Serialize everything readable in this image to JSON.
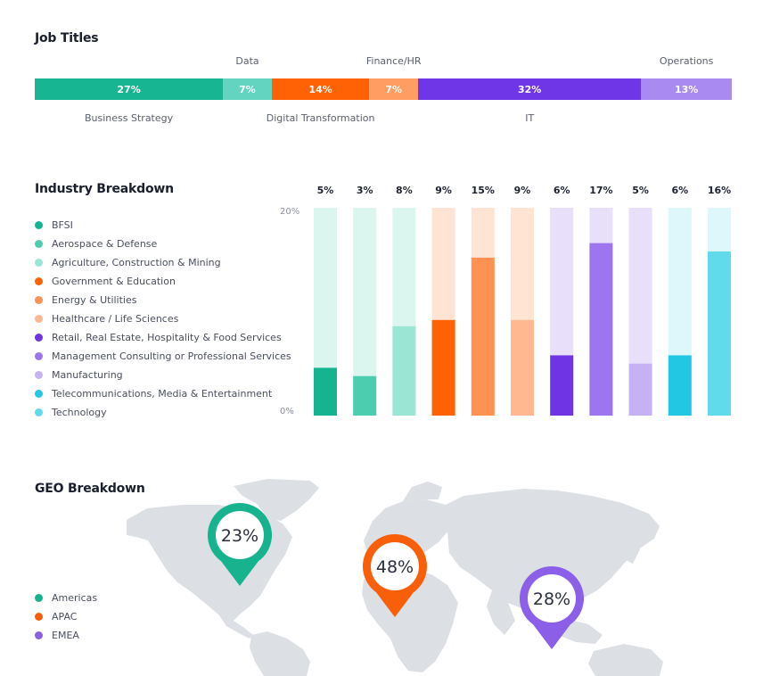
{
  "job_titles": {
    "title": "Job Titles"
  },
  "industry": {
    "title": "Industry Breakdown",
    "axis_top": "20%",
    "axis_bottom": "0%"
  },
  "geo": {
    "title": "GEO Breakdown"
  },
  "chart_data": [
    {
      "type": "bar",
      "title": "Job Titles",
      "stacked": true,
      "orientation": "horizontal",
      "categories": [
        "Business Strategy",
        "Data",
        "Digital Transformation",
        "Finance/HR",
        "IT",
        "Operations"
      ],
      "values": [
        27,
        7,
        14,
        7,
        32,
        13
      ],
      "value_labels": [
        "27%",
        "7%",
        "14%",
        "7%",
        "32%",
        "13%"
      ],
      "colors": [
        "#17b591",
        "#63d4bf",
        "#ff6205",
        "#ff9d63",
        "#6f36e8",
        "#a98af0"
      ],
      "label_positions": [
        "below",
        "above",
        "below",
        "above",
        "below",
        "above"
      ]
    },
    {
      "type": "bar",
      "title": "Industry Breakdown",
      "ylim": [
        0,
        20
      ],
      "ytick_labels": [
        "20%",
        "0%"
      ],
      "categories": [
        "BFSI",
        "Aerospace & Defense",
        "Agriculture, Construction & Mining",
        "Government & Education",
        "Energy & Utilities",
        "Healthcare / Life Sciences",
        "Retail, Real Estate, Hospitality & Food Services",
        "Management Consulting or Professional Services",
        "Manufacturing",
        "Telecommunications, Media & Entertainment",
        "Technology"
      ],
      "values": [
        5,
        3,
        8,
        9,
        15,
        9,
        6,
        17,
        5,
        6,
        16
      ],
      "value_labels": [
        "5%",
        "3%",
        "8%",
        "9%",
        "15%",
        "9%",
        "6%",
        "17%",
        "5%",
        "6%",
        "16%"
      ],
      "fill_fractions": [
        0.23,
        0.19,
        0.43,
        0.46,
        0.76,
        0.46,
        0.29,
        0.83,
        0.25,
        0.29,
        0.79
      ],
      "colors": [
        "#15b390",
        "#4ccdb0",
        "#9be5d4",
        "#fe6203",
        "#ff9152",
        "#ffb890",
        "#6f34e3",
        "#9d75ee",
        "#c7b1f5",
        "#22c8e3",
        "#5fdbec"
      ],
      "track_colors": [
        "#dbf5ef",
        "#dbf5ef",
        "#dbf5ef",
        "#ffe4d4",
        "#ffe4d4",
        "#ffe4d4",
        "#e8dffb",
        "#e8dffb",
        "#e8dffb",
        "#def7fa",
        "#def7fa"
      ],
      "legend": "left"
    },
    {
      "type": "map",
      "title": "GEO Breakdown",
      "regions": [
        "Americas",
        "APAC",
        "EMEA"
      ],
      "values": [
        23,
        48,
        28
      ],
      "value_labels": [
        "23%",
        "48%",
        "28%"
      ],
      "colors": [
        "#17b38f",
        "#f95f08",
        "#8b5fe8"
      ],
      "legend": "left"
    }
  ]
}
